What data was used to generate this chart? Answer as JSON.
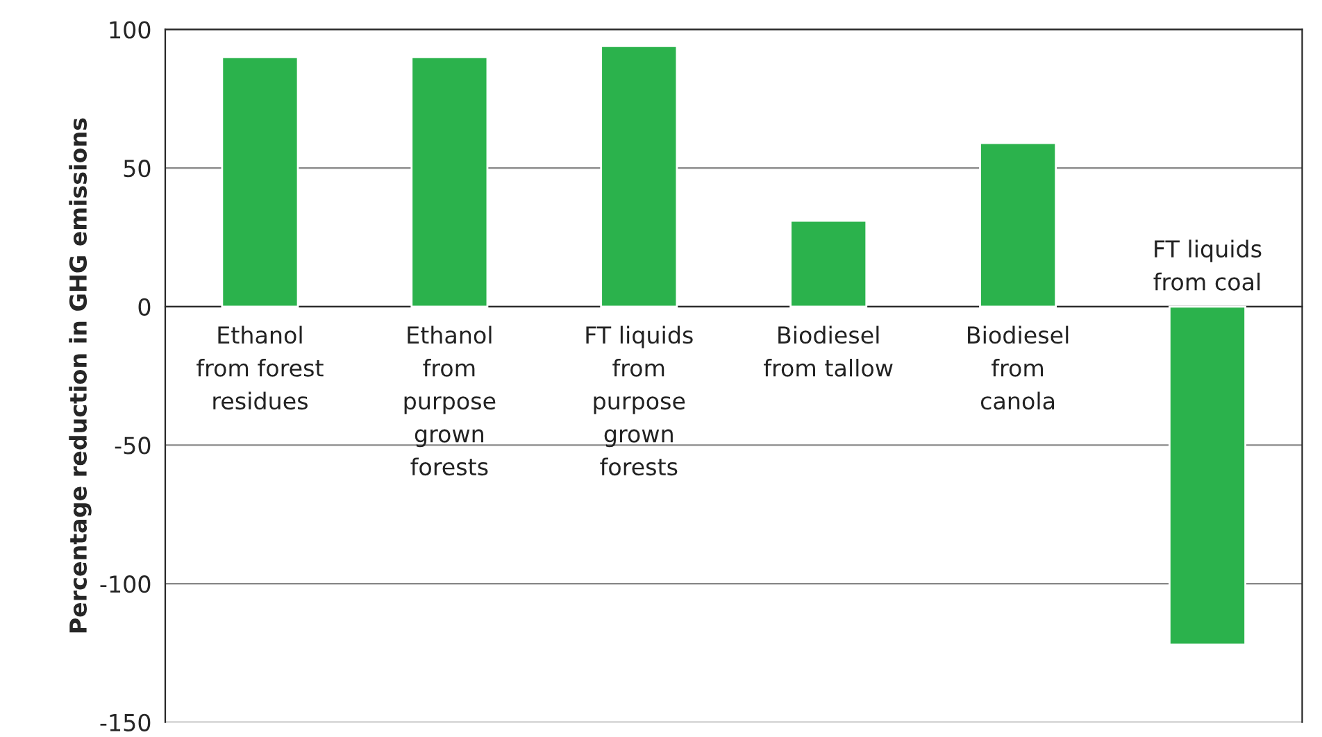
{
  "chart_data": {
    "type": "bar",
    "ylabel": "Percentage reduction in GHG emissions",
    "categories": [
      "Ethanol\nfrom forest\nresidues",
      "Ethanol\nfrom\npurpose\ngrown\nforests",
      "FT liquids\nfrom\npurpose\ngrown\nforests",
      "Biodiesel\nfrom tallow",
      "Biodiesel\nfrom\ncanola",
      "FT liquids\nfrom coal"
    ],
    "values": [
      90,
      90,
      94,
      31,
      59,
      -122
    ],
    "color": "#2bb24c",
    "ylim": [
      -150,
      100
    ],
    "yticks": [
      -150,
      -100,
      -50,
      0,
      50,
      100
    ],
    "grid": "y",
    "legend": false
  }
}
